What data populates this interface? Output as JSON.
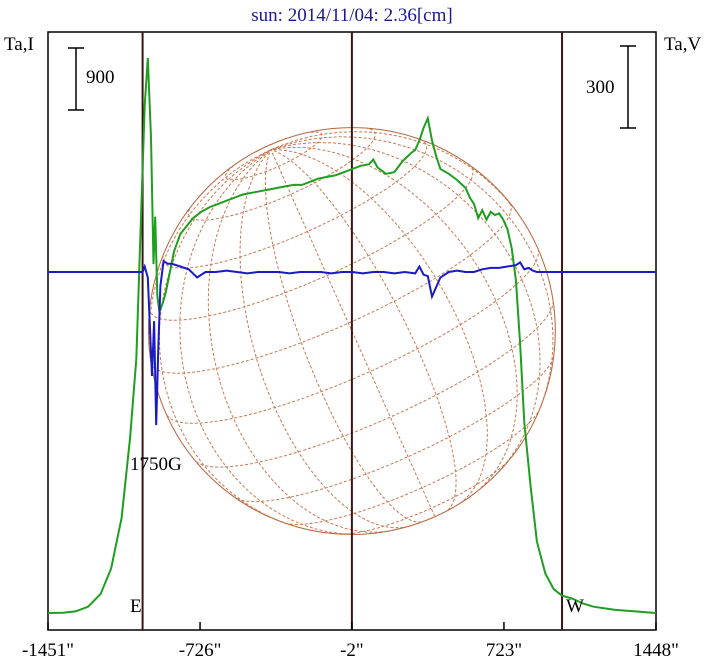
{
  "chart_data": {
    "type": "line",
    "title": "sun: 2014/11/04: 2.36[cm]",
    "left_axis_label": "Ta,I",
    "right_axis_label": "Ta,V",
    "left_scale_bar": "900",
    "right_scale_bar": "300",
    "annotation": "1750G",
    "east_label": "E",
    "west_label": "W",
    "x_ticks": [
      "-1451\"",
      "-726\"",
      "-2\"",
      "723\"",
      "1448\""
    ],
    "xlim": [
      -1451,
      1448
    ],
    "series": [
      {
        "color": "#1f9e1f",
        "x": [
          -1451,
          -1380,
          -1320,
          -1260,
          -1200,
          -1150,
          -1100,
          -1060,
          -1030,
          -1010,
          -990,
          -975,
          -960,
          -948,
          -940,
          -930,
          -920,
          -905,
          -890,
          -870,
          -850,
          -820,
          -790,
          -760,
          -720,
          -680,
          -640,
          -600,
          -560,
          -520,
          -480,
          -440,
          -400,
          -360,
          -320,
          -280,
          -240,
          -200,
          -160,
          -120,
          -80,
          -40,
          0,
          40,
          80,
          100,
          120,
          140,
          160,
          200,
          240,
          280,
          300,
          320,
          340,
          360,
          380,
          400,
          420,
          460,
          500,
          540,
          560,
          580,
          600,
          620,
          640,
          660,
          680,
          700,
          720,
          740,
          760,
          780,
          800,
          820,
          850,
          880,
          920,
          960,
          1000,
          1050,
          1100,
          1150,
          1200,
          1250,
          1300,
          1350,
          1400,
          1448
        ],
        "values": [
          0,
          2,
          10,
          40,
          120,
          280,
          600,
          1100,
          1600,
          2400,
          3200,
          3500,
          3000,
          2200,
          2500,
          2000,
          1900,
          1950,
          2020,
          2150,
          2280,
          2390,
          2440,
          2490,
          2530,
          2560,
          2580,
          2600,
          2620,
          2640,
          2650,
          2660,
          2670,
          2680,
          2690,
          2700,
          2700,
          2720,
          2740,
          2750,
          2760,
          2780,
          2800,
          2820,
          2830,
          2860,
          2810,
          2790,
          2770,
          2780,
          2850,
          2900,
          2920,
          2980,
          3060,
          3120,
          2980,
          2880,
          2800,
          2770,
          2730,
          2680,
          2620,
          2580,
          2490,
          2540,
          2480,
          2530,
          2510,
          2520,
          2480,
          2420,
          2300,
          2100,
          1700,
          1200,
          800,
          450,
          250,
          150,
          110,
          90,
          60,
          40,
          30,
          20,
          15,
          10,
          5,
          0
        ]
      },
      {
        "color": "#1a1ac8",
        "x": [
          -1451,
          -1350,
          -1250,
          -1150,
          -1050,
          -1000,
          -990,
          -975,
          -965,
          -955,
          -945,
          -935,
          -925,
          -915,
          -900,
          -880,
          -860,
          -820,
          -780,
          -740,
          -700,
          -650,
          -600,
          -550,
          -500,
          -450,
          -400,
          -350,
          -300,
          -250,
          -200,
          -150,
          -100,
          -50,
          0,
          50,
          100,
          150,
          200,
          250,
          300,
          320,
          340,
          360,
          380,
          420,
          460,
          500,
          540,
          580,
          620,
          660,
          700,
          740,
          780,
          800,
          820,
          840,
          860,
          880,
          900,
          1000,
          1100,
          1200,
          1300,
          1448
        ],
        "values": [
          0,
          0,
          0,
          0,
          0,
          0,
          20,
          -20,
          -200,
          -380,
          -180,
          -560,
          -280,
          -50,
          40,
          30,
          30,
          20,
          10,
          -20,
          0,
          0,
          5,
          0,
          -5,
          0,
          0,
          0,
          -5,
          0,
          0,
          0,
          -5,
          0,
          0,
          -5,
          0,
          0,
          -5,
          0,
          -5,
          20,
          -10,
          -15,
          -90,
          -20,
          0,
          5,
          0,
          0,
          10,
          15,
          15,
          20,
          25,
          35,
          10,
          15,
          5,
          0,
          0,
          0,
          0,
          0,
          0,
          0
        ]
      }
    ],
    "vertical_lines_x": [
      -1000,
      -2,
      1000
    ],
    "limb": {
      "center_x": -2,
      "radius": 970
    }
  }
}
